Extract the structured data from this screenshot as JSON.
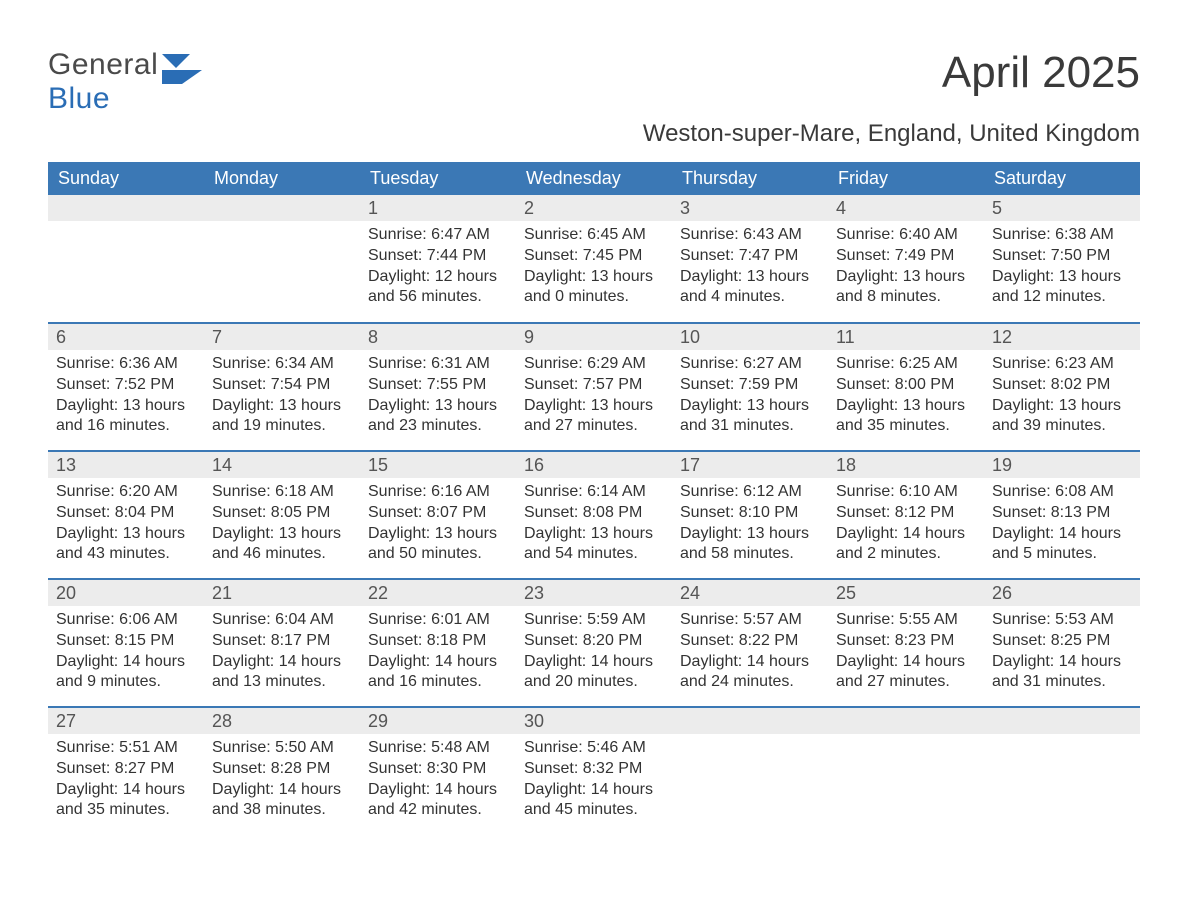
{
  "logo": {
    "part1": "General",
    "part2": "Blue"
  },
  "title": "April 2025",
  "subtitle": "Weston-super-Mare, England, United Kingdom",
  "colors": {
    "header_bg": "#3b78b5",
    "header_text": "#ffffff",
    "daynum_bg": "#ececec",
    "logo_accent": "#2a6db5",
    "body_text": "#333333",
    "page_bg": "#ffffff"
  },
  "weekdays": [
    "Sunday",
    "Monday",
    "Tuesday",
    "Wednesday",
    "Thursday",
    "Friday",
    "Saturday"
  ],
  "weeks": [
    [
      {
        "day": "",
        "sunrise": "",
        "sunset": "",
        "daylight1": "",
        "daylight2": ""
      },
      {
        "day": "",
        "sunrise": "",
        "sunset": "",
        "daylight1": "",
        "daylight2": ""
      },
      {
        "day": "1",
        "sunrise": "Sunrise: 6:47 AM",
        "sunset": "Sunset: 7:44 PM",
        "daylight1": "Daylight: 12 hours",
        "daylight2": "and 56 minutes."
      },
      {
        "day": "2",
        "sunrise": "Sunrise: 6:45 AM",
        "sunset": "Sunset: 7:45 PM",
        "daylight1": "Daylight: 13 hours",
        "daylight2": "and 0 minutes."
      },
      {
        "day": "3",
        "sunrise": "Sunrise: 6:43 AM",
        "sunset": "Sunset: 7:47 PM",
        "daylight1": "Daylight: 13 hours",
        "daylight2": "and 4 minutes."
      },
      {
        "day": "4",
        "sunrise": "Sunrise: 6:40 AM",
        "sunset": "Sunset: 7:49 PM",
        "daylight1": "Daylight: 13 hours",
        "daylight2": "and 8 minutes."
      },
      {
        "day": "5",
        "sunrise": "Sunrise: 6:38 AM",
        "sunset": "Sunset: 7:50 PM",
        "daylight1": "Daylight: 13 hours",
        "daylight2": "and 12 minutes."
      }
    ],
    [
      {
        "day": "6",
        "sunrise": "Sunrise: 6:36 AM",
        "sunset": "Sunset: 7:52 PM",
        "daylight1": "Daylight: 13 hours",
        "daylight2": "and 16 minutes."
      },
      {
        "day": "7",
        "sunrise": "Sunrise: 6:34 AM",
        "sunset": "Sunset: 7:54 PM",
        "daylight1": "Daylight: 13 hours",
        "daylight2": "and 19 minutes."
      },
      {
        "day": "8",
        "sunrise": "Sunrise: 6:31 AM",
        "sunset": "Sunset: 7:55 PM",
        "daylight1": "Daylight: 13 hours",
        "daylight2": "and 23 minutes."
      },
      {
        "day": "9",
        "sunrise": "Sunrise: 6:29 AM",
        "sunset": "Sunset: 7:57 PM",
        "daylight1": "Daylight: 13 hours",
        "daylight2": "and 27 minutes."
      },
      {
        "day": "10",
        "sunrise": "Sunrise: 6:27 AM",
        "sunset": "Sunset: 7:59 PM",
        "daylight1": "Daylight: 13 hours",
        "daylight2": "and 31 minutes."
      },
      {
        "day": "11",
        "sunrise": "Sunrise: 6:25 AM",
        "sunset": "Sunset: 8:00 PM",
        "daylight1": "Daylight: 13 hours",
        "daylight2": "and 35 minutes."
      },
      {
        "day": "12",
        "sunrise": "Sunrise: 6:23 AM",
        "sunset": "Sunset: 8:02 PM",
        "daylight1": "Daylight: 13 hours",
        "daylight2": "and 39 minutes."
      }
    ],
    [
      {
        "day": "13",
        "sunrise": "Sunrise: 6:20 AM",
        "sunset": "Sunset: 8:04 PM",
        "daylight1": "Daylight: 13 hours",
        "daylight2": "and 43 minutes."
      },
      {
        "day": "14",
        "sunrise": "Sunrise: 6:18 AM",
        "sunset": "Sunset: 8:05 PM",
        "daylight1": "Daylight: 13 hours",
        "daylight2": "and 46 minutes."
      },
      {
        "day": "15",
        "sunrise": "Sunrise: 6:16 AM",
        "sunset": "Sunset: 8:07 PM",
        "daylight1": "Daylight: 13 hours",
        "daylight2": "and 50 minutes."
      },
      {
        "day": "16",
        "sunrise": "Sunrise: 6:14 AM",
        "sunset": "Sunset: 8:08 PM",
        "daylight1": "Daylight: 13 hours",
        "daylight2": "and 54 minutes."
      },
      {
        "day": "17",
        "sunrise": "Sunrise: 6:12 AM",
        "sunset": "Sunset: 8:10 PM",
        "daylight1": "Daylight: 13 hours",
        "daylight2": "and 58 minutes."
      },
      {
        "day": "18",
        "sunrise": "Sunrise: 6:10 AM",
        "sunset": "Sunset: 8:12 PM",
        "daylight1": "Daylight: 14 hours",
        "daylight2": "and 2 minutes."
      },
      {
        "day": "19",
        "sunrise": "Sunrise: 6:08 AM",
        "sunset": "Sunset: 8:13 PM",
        "daylight1": "Daylight: 14 hours",
        "daylight2": "and 5 minutes."
      }
    ],
    [
      {
        "day": "20",
        "sunrise": "Sunrise: 6:06 AM",
        "sunset": "Sunset: 8:15 PM",
        "daylight1": "Daylight: 14 hours",
        "daylight2": "and 9 minutes."
      },
      {
        "day": "21",
        "sunrise": "Sunrise: 6:04 AM",
        "sunset": "Sunset: 8:17 PM",
        "daylight1": "Daylight: 14 hours",
        "daylight2": "and 13 minutes."
      },
      {
        "day": "22",
        "sunrise": "Sunrise: 6:01 AM",
        "sunset": "Sunset: 8:18 PM",
        "daylight1": "Daylight: 14 hours",
        "daylight2": "and 16 minutes."
      },
      {
        "day": "23",
        "sunrise": "Sunrise: 5:59 AM",
        "sunset": "Sunset: 8:20 PM",
        "daylight1": "Daylight: 14 hours",
        "daylight2": "and 20 minutes."
      },
      {
        "day": "24",
        "sunrise": "Sunrise: 5:57 AM",
        "sunset": "Sunset: 8:22 PM",
        "daylight1": "Daylight: 14 hours",
        "daylight2": "and 24 minutes."
      },
      {
        "day": "25",
        "sunrise": "Sunrise: 5:55 AM",
        "sunset": "Sunset: 8:23 PM",
        "daylight1": "Daylight: 14 hours",
        "daylight2": "and 27 minutes."
      },
      {
        "day": "26",
        "sunrise": "Sunrise: 5:53 AM",
        "sunset": "Sunset: 8:25 PM",
        "daylight1": "Daylight: 14 hours",
        "daylight2": "and 31 minutes."
      }
    ],
    [
      {
        "day": "27",
        "sunrise": "Sunrise: 5:51 AM",
        "sunset": "Sunset: 8:27 PM",
        "daylight1": "Daylight: 14 hours",
        "daylight2": "and 35 minutes."
      },
      {
        "day": "28",
        "sunrise": "Sunrise: 5:50 AM",
        "sunset": "Sunset: 8:28 PM",
        "daylight1": "Daylight: 14 hours",
        "daylight2": "and 38 minutes."
      },
      {
        "day": "29",
        "sunrise": "Sunrise: 5:48 AM",
        "sunset": "Sunset: 8:30 PM",
        "daylight1": "Daylight: 14 hours",
        "daylight2": "and 42 minutes."
      },
      {
        "day": "30",
        "sunrise": "Sunrise: 5:46 AM",
        "sunset": "Sunset: 8:32 PM",
        "daylight1": "Daylight: 14 hours",
        "daylight2": "and 45 minutes."
      },
      {
        "day": "",
        "sunrise": "",
        "sunset": "",
        "daylight1": "",
        "daylight2": ""
      },
      {
        "day": "",
        "sunrise": "",
        "sunset": "",
        "daylight1": "",
        "daylight2": ""
      },
      {
        "day": "",
        "sunrise": "",
        "sunset": "",
        "daylight1": "",
        "daylight2": ""
      }
    ]
  ]
}
